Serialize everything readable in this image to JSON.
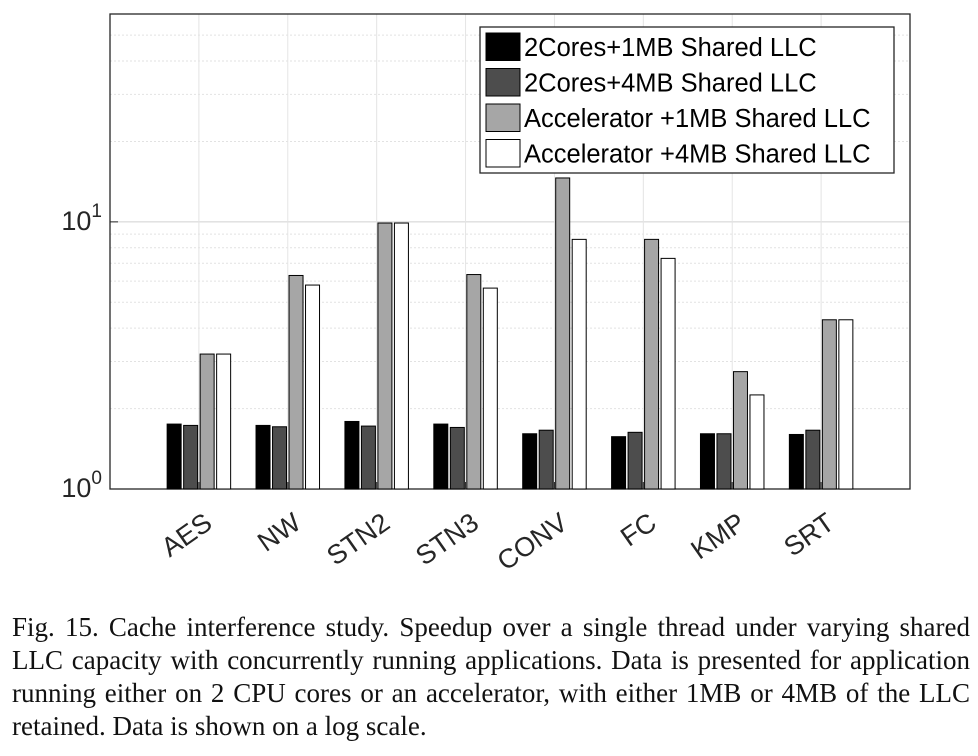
{
  "chart_data": {
    "type": "bar",
    "yscale": "log",
    "ylim": [
      1,
      60
    ],
    "grid": true,
    "legend_position": "top-right",
    "y_ticks": [
      {
        "base": "10",
        "exp": "0"
      },
      {
        "base": "10",
        "exp": "1"
      }
    ],
    "categories": [
      "AES",
      "NW",
      "STN2",
      "STN3",
      "CONV",
      "FC",
      "KMP",
      "SRT"
    ],
    "series": [
      {
        "name": "2Cores+1MB Shared LLC",
        "color": "#000000",
        "values": [
          1.75,
          1.73,
          1.79,
          1.75,
          1.61,
          1.57,
          1.61,
          1.6
        ]
      },
      {
        "name": "2Cores+4MB Shared LLC",
        "color": "#4d4d4d",
        "values": [
          1.73,
          1.71,
          1.72,
          1.7,
          1.66,
          1.63,
          1.61,
          1.66
        ]
      },
      {
        "name": "Accelerator +1MB Shared LLC",
        "color": "#a6a6a6",
        "values": [
          3.2,
          6.3,
          9.9,
          6.35,
          14.6,
          8.6,
          2.75,
          4.3
        ]
      },
      {
        "name": "Accelerator +4MB Shared LLC",
        "color": "#ffffff",
        "values": [
          3.2,
          5.8,
          9.9,
          5.65,
          8.6,
          7.3,
          2.25,
          4.3
        ]
      }
    ]
  },
  "caption": "Fig. 15.  Cache interference study. Speedup over a single thread under varying shared LLC capacity with concurrently running applications. Data is presented for application running either on 2 CPU cores or an accelerator, with either 1MB or 4MB of the LLC retained. Data is shown on a log scale."
}
